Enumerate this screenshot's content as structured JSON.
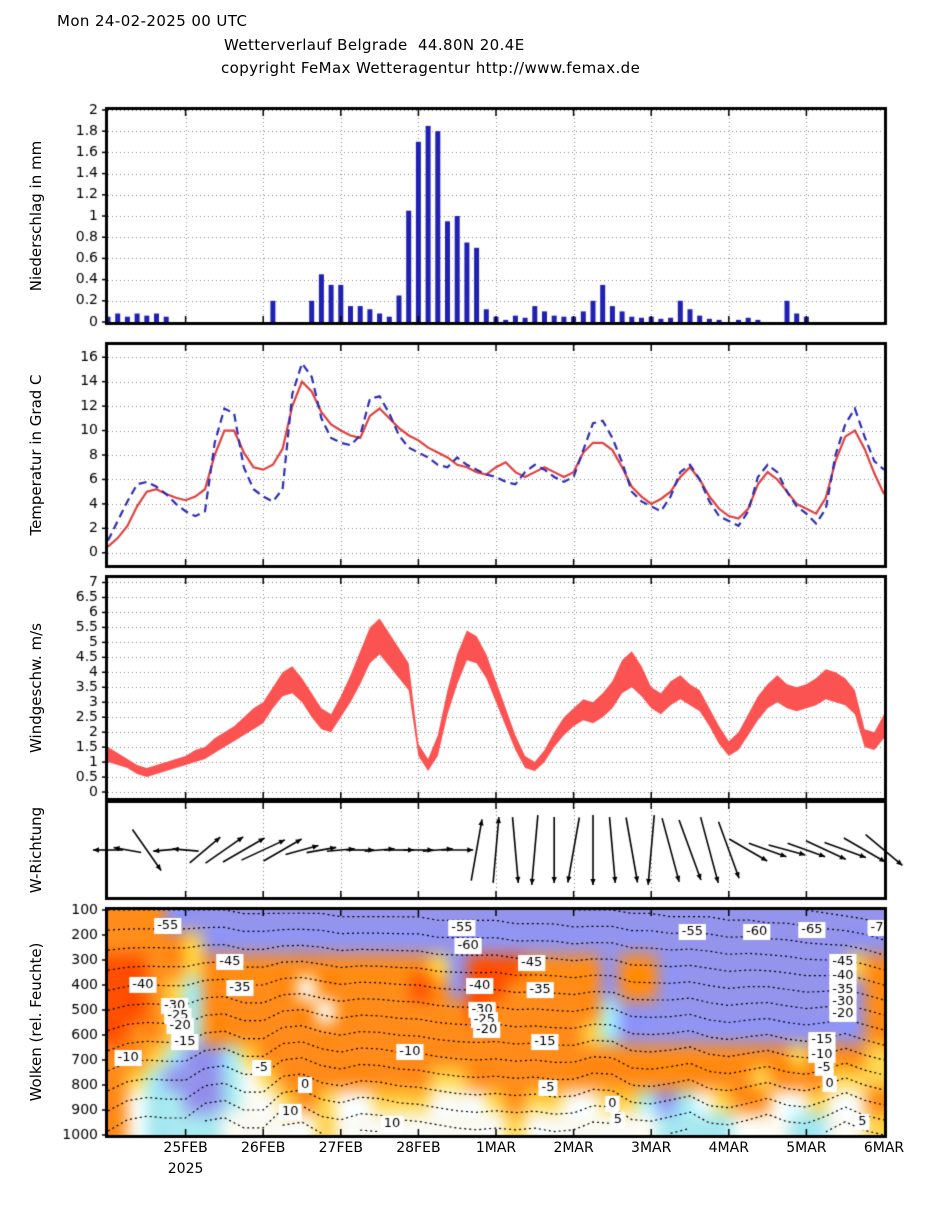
{
  "header": {
    "datetime": "Mon 24-02-2025 00 UTC",
    "title": "Wetterverlauf Belgrade  44.80N 20.4E",
    "copyright": "copyright FeMax Wetteragentur http://www.femax.de"
  },
  "x_axis": {
    "tick_labels": [
      "25FEB",
      "26FEB",
      "27FEB",
      "28FEB",
      "1MAR",
      "2MAR",
      "3MAR",
      "4MAR",
      "5MAR",
      "6MAR"
    ],
    "year_label": "2025",
    "days_total": 10,
    "start": "24 Feb 2025 00 UTC",
    "step_hours": 3
  },
  "colors": {
    "bar_blue": "#2020b2",
    "temp_red": "#e04040",
    "temp_blue": "#2d2db4",
    "wind_band": "#fb5252",
    "grid": "#888888",
    "frame": "#000000"
  },
  "chart_data": [
    {
      "id": "precip",
      "type": "bar",
      "title": "Niederschlag in mm",
      "ylim": [
        0,
        2
      ],
      "ytick_step": 0.2,
      "bar_color": "#2020b2",
      "values": [
        0.05,
        0.08,
        0.05,
        0.08,
        0.06,
        0.08,
        0.05,
        0,
        0,
        0,
        0,
        0,
        0,
        0,
        0,
        0,
        0,
        0.2,
        0,
        0,
        0,
        0.2,
        0.45,
        0.35,
        0.35,
        0.15,
        0.15,
        0.12,
        0.08,
        0.05,
        0.25,
        1.05,
        1.7,
        1.85,
        1.8,
        0.95,
        1.0,
        0.75,
        0.7,
        0.12,
        0.05,
        0.02,
        0.06,
        0.04,
        0.15,
        0.1,
        0.06,
        0.05,
        0.05,
        0.1,
        0.2,
        0.35,
        0.15,
        0.1,
        0.05,
        0.04,
        0.05,
        0.03,
        0.04,
        0.2,
        0.12,
        0.06,
        0.03,
        0.02,
        0,
        0.02,
        0.04,
        0.02,
        0,
        0,
        0.2,
        0.08,
        0.05,
        0,
        0,
        0,
        0,
        0,
        0,
        0,
        0
      ]
    },
    {
      "id": "temp",
      "type": "line",
      "title": "Temperatur in Grad C",
      "ylim": [
        0,
        16
      ],
      "ytick_step": 2,
      "series": [
        {
          "name": "temperature-solid-red",
          "color": "#e04040",
          "dash": [],
          "values": [
            0.5,
            1.2,
            2.2,
            3.8,
            5.0,
            5.2,
            4.8,
            4.5,
            4.3,
            4.6,
            5.2,
            8.0,
            10.0,
            10.0,
            8.2,
            7.0,
            6.8,
            7.2,
            8.5,
            12.0,
            14.0,
            13.2,
            11.5,
            10.5,
            10.0,
            9.6,
            9.4,
            11.2,
            11.8,
            11.0,
            10.2,
            9.6,
            9.2,
            8.6,
            8.2,
            7.8,
            7.2,
            7.0,
            6.6,
            6.4,
            7.0,
            7.4,
            6.6,
            6.2,
            6.6,
            7.0,
            6.6,
            6.2,
            6.6,
            8.2,
            9.0,
            9.0,
            8.4,
            7.0,
            5.4,
            4.6,
            4.0,
            4.4,
            5.0,
            6.2,
            7.0,
            6.0,
            4.6,
            3.6,
            3.0,
            2.8,
            3.6,
            5.6,
            6.6,
            6.0,
            5.0,
            4.0,
            3.6,
            3.2,
            4.5,
            7.5,
            9.5,
            10.0,
            8.5,
            6.5,
            4.8
          ]
        },
        {
          "name": "temperature-dashed-blue",
          "color": "#2d2db4",
          "dash": [
            8,
            5
          ],
          "values": [
            1.0,
            2.6,
            4.2,
            5.6,
            5.8,
            5.4,
            4.8,
            4.0,
            3.4,
            3.0,
            3.4,
            9.0,
            11.8,
            11.4,
            7.0,
            5.2,
            4.6,
            4.2,
            5.2,
            13.0,
            15.5,
            14.4,
            11.0,
            9.4,
            9.0,
            8.8,
            9.6,
            12.6,
            12.8,
            11.4,
            9.6,
            8.6,
            8.2,
            7.8,
            7.2,
            7.0,
            7.8,
            7.2,
            6.8,
            6.4,
            6.2,
            5.8,
            5.6,
            6.6,
            7.2,
            6.8,
            6.2,
            5.8,
            6.2,
            8.4,
            10.6,
            10.8,
            9.4,
            7.4,
            5.0,
            4.2,
            3.8,
            3.4,
            4.6,
            6.6,
            7.2,
            6.0,
            4.2,
            3.0,
            2.6,
            2.2,
            3.4,
            6.2,
            7.2,
            6.6,
            5.0,
            3.8,
            3.2,
            2.4,
            3.6,
            8.0,
            10.5,
            11.8,
            9.5,
            7.5,
            6.8
          ]
        }
      ]
    },
    {
      "id": "wind",
      "type": "band",
      "title": "Windgeschw. m/s",
      "ylim": [
        0,
        7
      ],
      "ytick_step": 0.5,
      "color": "#fb5252",
      "min": [
        1.0,
        0.9,
        0.8,
        0.6,
        0.5,
        0.6,
        0.7,
        0.8,
        0.9,
        1.0,
        1.1,
        1.3,
        1.5,
        1.7,
        1.9,
        2.1,
        2.3,
        2.8,
        3.2,
        3.3,
        3.0,
        2.5,
        2.1,
        2.0,
        2.5,
        3.0,
        3.6,
        4.3,
        4.6,
        4.2,
        3.8,
        3.4,
        1.2,
        0.7,
        1.2,
        2.6,
        3.6,
        4.4,
        4.3,
        3.8,
        3.0,
        2.2,
        1.4,
        0.8,
        0.7,
        1.0,
        1.5,
        1.9,
        2.2,
        2.4,
        2.3,
        2.5,
        2.8,
        3.3,
        3.5,
        3.2,
        2.8,
        2.6,
        2.9,
        3.1,
        2.9,
        2.7,
        2.2,
        1.6,
        1.2,
        1.4,
        1.9,
        2.4,
        2.8,
        3.0,
        2.8,
        2.7,
        2.8,
        2.9,
        3.1,
        3.0,
        2.9,
        2.6,
        1.5,
        1.4,
        1.8
      ],
      "max": [
        1.5,
        1.3,
        1.1,
        0.9,
        0.8,
        0.9,
        1.0,
        1.1,
        1.2,
        1.4,
        1.5,
        1.8,
        2.0,
        2.2,
        2.5,
        2.8,
        3.0,
        3.5,
        4.0,
        4.2,
        3.8,
        3.3,
        2.8,
        2.6,
        3.2,
        3.9,
        4.7,
        5.5,
        5.8,
        5.3,
        4.8,
        4.3,
        1.6,
        1.1,
        1.9,
        3.4,
        4.6,
        5.4,
        5.2,
        4.6,
        3.7,
        2.8,
        1.9,
        1.2,
        1.0,
        1.4,
        2.0,
        2.5,
        2.8,
        3.1,
        3.0,
        3.3,
        3.7,
        4.4,
        4.7,
        4.2,
        3.5,
        3.3,
        3.7,
        3.9,
        3.6,
        3.4,
        2.8,
        2.2,
        1.7,
        2.0,
        2.6,
        3.2,
        3.6,
        3.9,
        3.6,
        3.5,
        3.6,
        3.8,
        4.1,
        4.0,
        3.8,
        3.4,
        2.1,
        2.0,
        2.6
      ]
    },
    {
      "id": "winddir",
      "type": "arrows",
      "title": "W-Richtung",
      "arrows": [
        [
          180,
          30
        ],
        [
          170,
          28
        ],
        [
          -55,
          50
        ],
        [
          185,
          26
        ],
        [
          175,
          26
        ],
        [
          40,
          40
        ],
        [
          35,
          46
        ],
        [
          30,
          48
        ],
        [
          25,
          48
        ],
        [
          30,
          44
        ],
        [
          15,
          34
        ],
        [
          10,
          30
        ],
        [
          5,
          28
        ],
        [
          0,
          28
        ],
        [
          5,
          30
        ],
        [
          0,
          30
        ],
        [
          0,
          30
        ],
        [
          5,
          30
        ],
        [
          0,
          32
        ],
        [
          80,
          62
        ],
        [
          85,
          66
        ],
        [
          -85,
          66
        ],
        [
          -95,
          70
        ],
        [
          -90,
          66
        ],
        [
          -100,
          66
        ],
        [
          -90,
          70
        ],
        [
          -85,
          66
        ],
        [
          -80,
          66
        ],
        [
          -95,
          70
        ],
        [
          -75,
          66
        ],
        [
          -70,
          64
        ],
        [
          -75,
          68
        ],
        [
          -70,
          60
        ],
        [
          -30,
          44
        ],
        [
          -20,
          40
        ],
        [
          -15,
          38
        ],
        [
          -20,
          40
        ],
        [
          -25,
          44
        ],
        [
          -20,
          44
        ],
        [
          -30,
          48
        ],
        [
          -40,
          48
        ]
      ]
    },
    {
      "id": "clouds",
      "type": "heatmap",
      "title": "Wolken (rel. Feuchte)",
      "ylim": [
        100,
        1000
      ],
      "ytick_step": 100,
      "y_unit": "hPa",
      "palette": {
        "1": "#9494ec",
        "3": "#a8e8f0",
        "5": "#fafaf2",
        "6": "#ffd24d",
        "7": "#ff8c1a",
        "8": "#ff5000"
      },
      "palette_meaning": {
        "1": "dry",
        "3": "moist-low",
        "5": "near-saturated-white",
        "6": "humid-yellow",
        "7": "humid-orange",
        "8": "very-humid-red"
      },
      "grid_levels_hpa": [
        100,
        200,
        300,
        400,
        500,
        600,
        700,
        800,
        900,
        1000
      ],
      "grid_rows": [
        "77711111111111111111111111111111111111111",
        "77776111111111111111111111111111111111111",
        "88776777777777777618887777177111111111167",
        "88763777775777778718877777177111111111117",
        "88763777777577777778777777311111111111117",
        "87763777777777777777777776311111111111117",
        "77631136777777777777777777777777777767776",
        "76311135677777777667777777777777776777666",
        "75331135567655666555676655663135677556557",
        "75333355555655555555565555555333355533556"
      ],
      "contour_interval": 5,
      "contour_surface_temp": [
        1,
        4,
        5,
        4.5,
        4.5,
        9,
        10,
        7,
        7,
        13,
        14,
        10.5,
        9.5,
        11.5,
        11,
        9.5,
        9,
        8,
        7,
        6.5,
        7,
        6.5,
        7,
        6,
        6.5,
        9,
        8.5,
        4.5,
        4,
        5.5,
        7,
        3.5,
        3,
        4.5,
        6.5,
        4,
        3.5,
        6,
        9.5,
        6.5,
        5
      ],
      "contour_top_temp": [
        -55,
        -55,
        -55,
        -55,
        -55,
        -55,
        -55,
        -56,
        -56,
        -56,
        -56,
        -56,
        -57,
        -57,
        -57,
        -57,
        -57,
        -58,
        -58,
        -58,
        -58,
        -59,
        -59,
        -59,
        -60,
        -60,
        -60,
        -61,
        -61,
        -62,
        -62,
        -62,
        -63,
        -63,
        -64,
        -64,
        -65,
        -66,
        -67,
        -68,
        -70
      ],
      "contour_labels": [
        [
          "-55",
          0.077,
          0.071
        ],
        [
          "-45",
          0.157,
          0.231
        ],
        [
          "-40",
          0.045,
          0.333
        ],
        [
          "-35",
          0.17,
          0.347
        ],
        [
          "-30",
          0.086,
          0.427
        ],
        [
          "-25",
          0.09,
          0.471
        ],
        [
          "-20",
          0.093,
          0.516
        ],
        [
          "-15",
          0.099,
          0.587
        ],
        [
          "-10",
          0.026,
          0.658
        ],
        [
          "-5",
          0.198,
          0.702
        ],
        [
          "0",
          0.254,
          0.778
        ],
        [
          "10",
          0.235,
          0.898
        ],
        [
          "-55",
          0.456,
          0.08
        ],
        [
          "-60",
          0.464,
          0.16
        ],
        [
          "-45",
          0.546,
          0.236
        ],
        [
          "-40",
          0.479,
          0.338
        ],
        [
          "-35",
          0.557,
          0.356
        ],
        [
          "-30",
          0.482,
          0.444
        ],
        [
          "-25",
          0.485,
          0.489
        ],
        [
          "-20",
          0.488,
          0.533
        ],
        [
          "-15",
          0.563,
          0.587
        ],
        [
          "-10",
          0.389,
          0.631
        ],
        [
          "-5",
          0.567,
          0.791
        ],
        [
          "0",
          0.65,
          0.862
        ],
        [
          "5",
          0.657,
          0.933
        ],
        [
          "10",
          0.366,
          0.951
        ],
        [
          "-55",
          0.753,
          0.098
        ],
        [
          "-60",
          0.836,
          0.098
        ],
        [
          "-65",
          0.907,
          0.089
        ],
        [
          "-7",
          0.991,
          0.08
        ],
        [
          "-45",
          0.947,
          0.231
        ],
        [
          "-40",
          0.947,
          0.293
        ],
        [
          "-35",
          0.947,
          0.356
        ],
        [
          "-30",
          0.947,
          0.409
        ],
        [
          "-20",
          0.947,
          0.462
        ],
        [
          "-15",
          0.92,
          0.578
        ],
        [
          "-10",
          0.92,
          0.644
        ],
        [
          "-5",
          0.923,
          0.702
        ],
        [
          "0",
          0.93,
          0.773
        ],
        [
          "5",
          0.972,
          0.942
        ]
      ]
    }
  ]
}
